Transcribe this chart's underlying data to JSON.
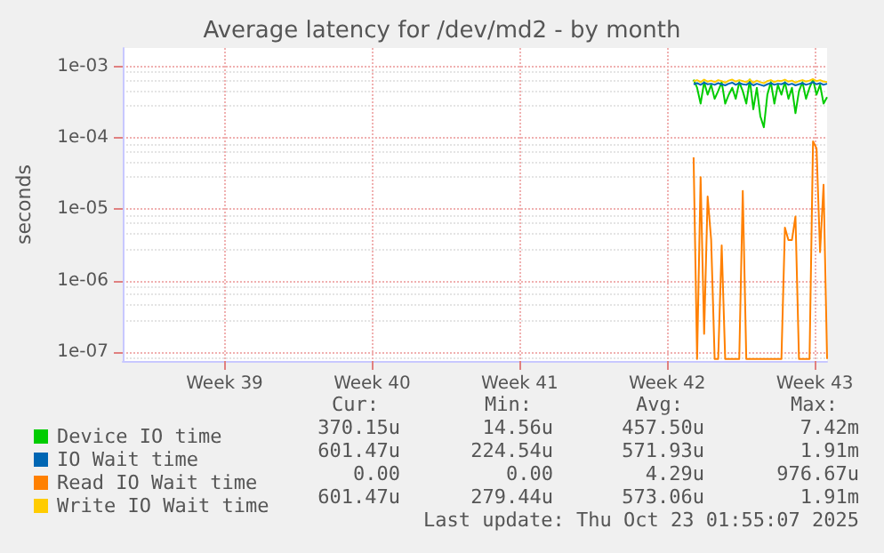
{
  "chart_data": {
    "type": "line",
    "title": "Average latency for /dev/md2 - by month",
    "ylabel": "seconds",
    "x": [
      "2025-10-16T18:00",
      "2025-10-16T22:00",
      "2025-10-17T02:00",
      "2025-10-17T06:00",
      "2025-10-17T10:00",
      "2025-10-17T14:00",
      "2025-10-17T18:00",
      "2025-10-17T22:00",
      "2025-10-18T02:00",
      "2025-10-18T06:00",
      "2025-10-18T10:00",
      "2025-10-18T14:00",
      "2025-10-18T18:00",
      "2025-10-18T22:00",
      "2025-10-19T02:00",
      "2025-10-19T06:00",
      "2025-10-19T10:00",
      "2025-10-19T14:00",
      "2025-10-19T18:00",
      "2025-10-19T22:00",
      "2025-10-20T02:00",
      "2025-10-20T06:00",
      "2025-10-20T10:00",
      "2025-10-20T14:00",
      "2025-10-20T18:00",
      "2025-10-20T22:00",
      "2025-10-21T02:00",
      "2025-10-21T06:00",
      "2025-10-21T10:00",
      "2025-10-21T14:00",
      "2025-10-21T18:00",
      "2025-10-21T22:00",
      "2025-10-22T02:00",
      "2025-10-22T06:00",
      "2025-10-22T10:00",
      "2025-10-22T14:00",
      "2025-10-22T18:00",
      "2025-10-22T22:00",
      "2025-10-23T02:00"
    ],
    "series": [
      {
        "name": "Device IO time",
        "color": "#00cc00",
        "values": [
          0.00065,
          0.0005,
          0.0003,
          0.0006,
          0.0004,
          0.00055,
          0.00035,
          0.00045,
          0.0006,
          0.0003,
          0.0004,
          0.0005,
          0.00035,
          0.0006,
          0.00045,
          0.0003,
          0.00065,
          0.00025,
          0.0005,
          0.0002,
          0.00014,
          0.0004,
          0.0006,
          0.0003,
          0.00055,
          0.0004,
          0.0006,
          0.00035,
          0.0005,
          0.00022,
          0.00045,
          0.0006,
          0.00035,
          0.0005,
          0.00065,
          0.0004,
          0.00055,
          0.0003,
          0.00037
        ]
      },
      {
        "name": "IO Wait time",
        "color": "#0066b3",
        "values": [
          0.00056,
          0.00058,
          0.00055,
          0.00059,
          0.00056,
          0.00057,
          0.00055,
          0.00058,
          0.00056,
          0.00054,
          0.00057,
          0.00059,
          0.00055,
          0.00058,
          0.00056,
          0.00055,
          0.00059,
          0.00054,
          0.00057,
          0.00055,
          0.00053,
          0.00056,
          0.00058,
          0.00055,
          0.00057,
          0.00056,
          0.00059,
          0.00055,
          0.00057,
          0.00054,
          0.00056,
          0.00058,
          0.00055,
          0.00057,
          0.0006,
          0.00056,
          0.00058,
          0.00055,
          0.00057
        ]
      },
      {
        "name": "Read IO Wait time",
        "color": "#ff8000",
        "values": [
          5.3e-05,
          8e-08,
          2.8e-05,
          1.8e-07,
          1.5e-05,
          3.7e-06,
          8e-08,
          8e-08,
          3.1e-06,
          8e-08,
          8e-08,
          8e-08,
          8e-08,
          8e-08,
          1.8e-05,
          8e-08,
          8e-08,
          8e-08,
          8e-08,
          8e-08,
          8e-08,
          8e-08,
          8e-08,
          8e-08,
          8e-08,
          8e-08,
          5.5e-06,
          3.7e-06,
          3.7e-06,
          7.9e-06,
          8e-08,
          8e-08,
          8e-08,
          8e-08,
          8.9e-05,
          7.1e-05,
          2.5e-06,
          2.2e-05,
          8e-08
        ]
      },
      {
        "name": "Write IO Wait time",
        "color": "#ffcc00",
        "values": [
          0.00062,
          0.00064,
          0.0006,
          0.00065,
          0.00061,
          0.00063,
          0.0006,
          0.00064,
          0.00062,
          0.00059,
          0.00063,
          0.00065,
          0.00061,
          0.00064,
          0.00062,
          0.0006,
          0.00065,
          0.00059,
          0.00063,
          0.0006,
          0.00058,
          0.00062,
          0.00064,
          0.0006,
          0.00063,
          0.00062,
          0.00065,
          0.00061,
          0.00063,
          0.00059,
          0.00062,
          0.00064,
          0.00061,
          0.00063,
          0.00066,
          0.00062,
          0.00064,
          0.00061,
          0.0006
        ]
      }
    ],
    "log": "y",
    "xlim": [
      "2025-09-19T16:00",
      "2025-10-23T02:00"
    ],
    "xticks": [
      {
        "value": "2025-09-24T12:00",
        "label": "Week 39"
      },
      {
        "value": "2025-10-01T12:00",
        "label": "Week 40"
      },
      {
        "value": "2025-10-08T12:00",
        "label": "Week 41"
      },
      {
        "value": "2025-10-15T12:00",
        "label": "Week 42"
      },
      {
        "value": "2025-10-22T12:00",
        "label": "Week 43"
      }
    ],
    "ylim": [
      7.5e-08,
      0.0018
    ],
    "yticks": [
      {
        "value": 1e-07,
        "label": "1e-07"
      },
      {
        "value": 1e-06,
        "label": "1e-06"
      },
      {
        "value": 1e-05,
        "label": "1e-05"
      },
      {
        "value": 0.0001,
        "label": "1e-04"
      },
      {
        "value": 0.001,
        "label": "1e-03"
      }
    ],
    "grid": true,
    "marker": "none",
    "line_style": "solid",
    "legend": "bottom",
    "annotations": [
      "Cur:",
      "Min:",
      "Avg:",
      "Max:",
      "370.15u",
      "14.56u",
      "457.50u",
      "7.42m",
      "601.47u",
      "224.54u",
      "571.93u",
      "1.91m",
      "0.00",
      "0.00",
      "4.29u",
      "976.67u",
      "601.47u",
      "279.44u",
      "573.06u",
      "1.91m",
      "Last update: Thu Oct 23 01:55:07 2025"
    ]
  }
}
